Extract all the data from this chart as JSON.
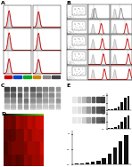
{
  "bg_color": "#ffffff",
  "flow_fill_color": "#d8d8d8",
  "flow_line_red": "#cc0000",
  "flow_line_gray": "#888888",
  "flow_line_black": "#222222",
  "dot_gray": "#999999",
  "dot_dark": "#444444",
  "wb_bg": "#c8c8c8",
  "wb_band_dark": "#2a2a2a",
  "wb_band_mid": "#5a5a5a",
  "wb_band_light": "#909090",
  "heatmap_bg": "#0a0a0a",
  "heatmap_red_hi": "#cc2200",
  "heatmap_red_lo": "#550000",
  "bar_black": "#111111",
  "bar_dark": "#333333",
  "label_color_green": "#44bb00",
  "label_color_blue": "#4488ff",
  "label_color_pink": "#ff44aa",
  "label_color_orange": "#ff8800",
  "label_color_cyan": "#00cccc"
}
